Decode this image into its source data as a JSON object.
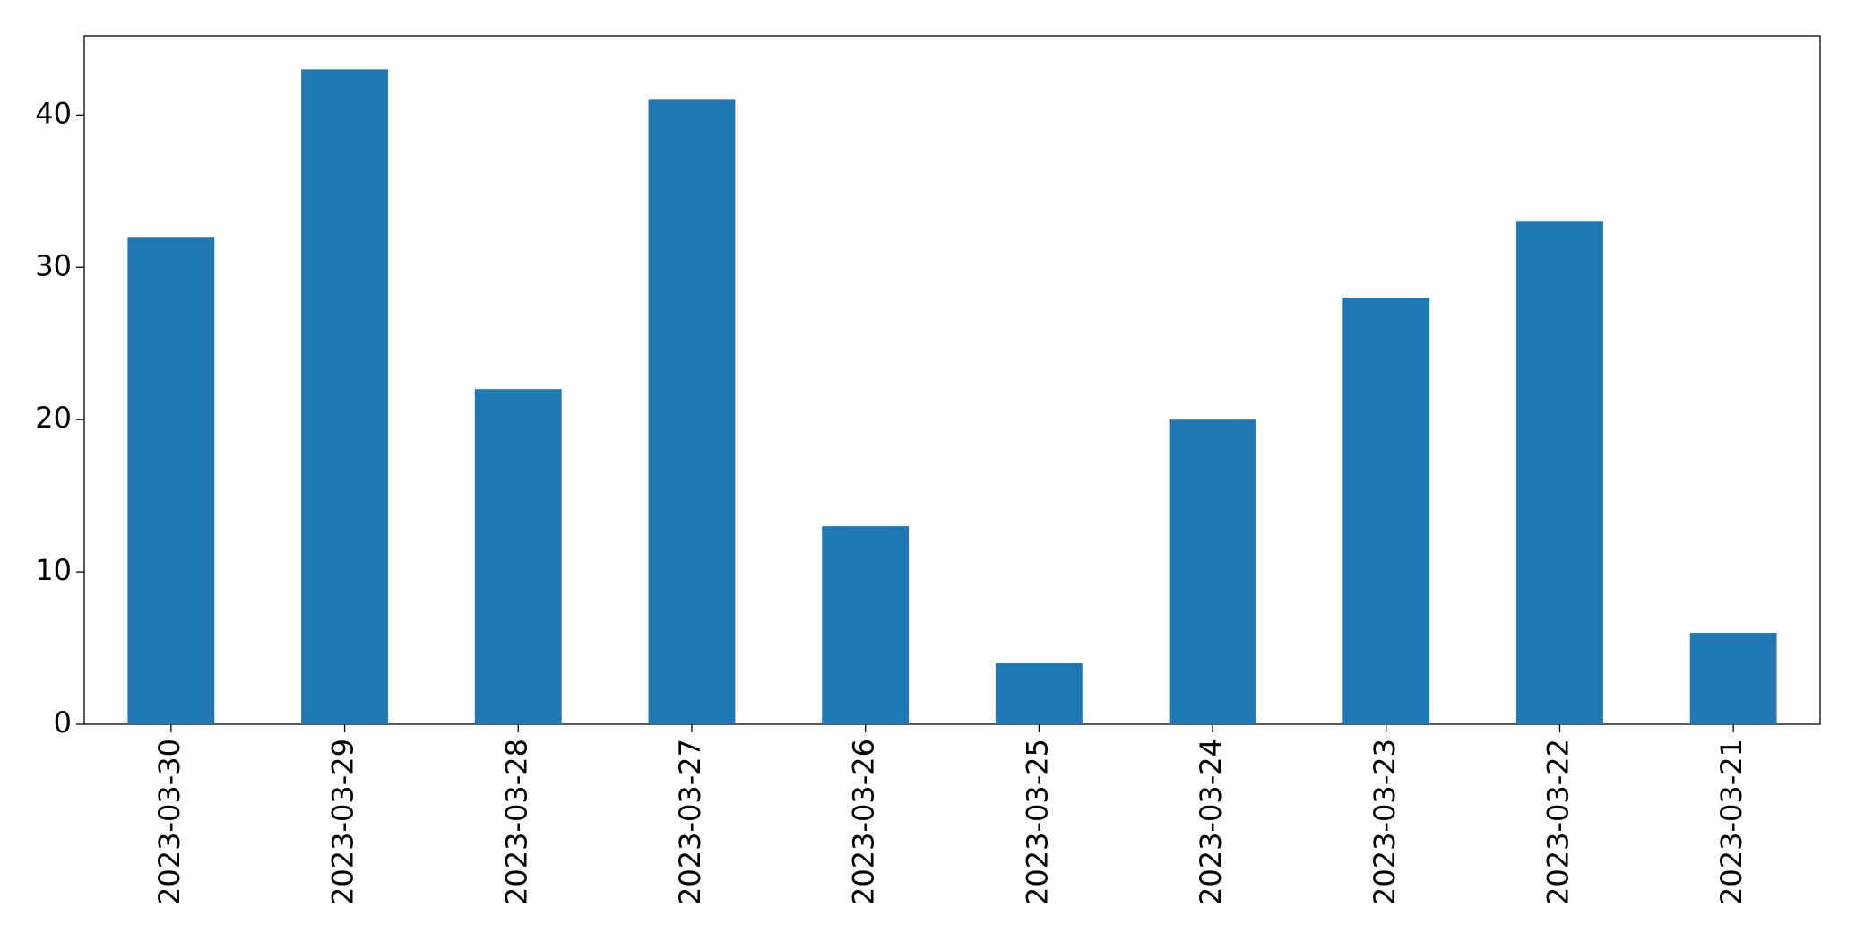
{
  "chart_data": {
    "type": "bar",
    "categories": [
      "2023-03-30",
      "2023-03-29",
      "2023-03-28",
      "2023-03-27",
      "2023-03-26",
      "2023-03-25",
      "2023-03-24",
      "2023-03-23",
      "2023-03-22",
      "2023-03-21"
    ],
    "values": [
      32,
      43,
      22,
      41,
      13,
      4,
      20,
      28,
      33,
      6
    ],
    "color": "#1f77b4",
    "ylim": [
      0,
      45.2
    ],
    "yticks": [
      0,
      10,
      20,
      30,
      40
    ],
    "grid": false
  }
}
